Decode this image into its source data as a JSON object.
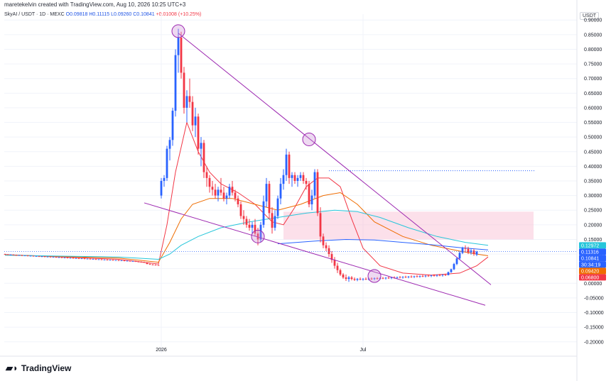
{
  "header": {
    "text": "maretekelvin created with TradingView.com, Aug 10, 2026 10:25 UTC+3"
  },
  "legend": {
    "symbol": "SkyAI / USDT · 1D · MEXC",
    "open": "O0.09818",
    "high": "H0.11115",
    "low": "L0.09260",
    "close": "C0.10841",
    "change": "+0.01008 (+10.25%)"
  },
  "quote_currency": "USDT",
  "footer": {
    "brand": "TradingView"
  },
  "colors": {
    "up": "#2962ff",
    "down": "#f23645",
    "channel": "#9c27b0",
    "ma_fast": "#f23645",
    "ma_mid": "#ef6c00",
    "ma_cyan": "#26c6da",
    "ma_blue": "#2962ff",
    "zone": "#f8bbd0",
    "resistance": "#2962ff"
  },
  "price_tags": [
    {
      "label": "0.12972",
      "value": 0.12972,
      "color": "#26c6da"
    },
    {
      "label": "0.11316",
      "value": 0.11316,
      "color": "#2962ff"
    },
    {
      "label": "0.10841",
      "value": 0.10841,
      "color": "#2962ff"
    },
    {
      "label": "30:34:19",
      "value": 0.0975,
      "color": "#2962ff"
    },
    {
      "label": "0.09420",
      "value": 0.0942,
      "color": "#ef6c00"
    },
    {
      "label": "0.06800",
      "value": 0.068,
      "color": "#f23645"
    }
  ],
  "chart_data": {
    "type": "candlestick",
    "ylim": [
      -0.22,
      0.92
    ],
    "y_ticks": [
      0.9,
      0.85,
      0.8,
      0.75,
      0.7,
      0.65,
      0.6,
      0.55,
      0.5,
      0.45,
      0.4,
      0.35,
      0.3,
      0.25,
      0.2,
      0.15,
      0.1,
      0.05,
      0.0,
      -0.05,
      -0.1,
      -0.15,
      -0.2
    ],
    "y_tick_labels": [
      "0.90000",
      "0.85000",
      "0.80000",
      "0.75000",
      "0.70000",
      "0.65000",
      "0.60000",
      "0.55000",
      "0.50000",
      "0.45000",
      "0.40000",
      "0.35000",
      "0.30000",
      "0.25000",
      "0.20000",
      "0.15000",
      "0.10000",
      "0.05000",
      "0.00000",
      "-0.05000",
      "-0.10000",
      "-0.15000",
      "-0.20000"
    ],
    "x_labels": [
      {
        "label": "2026",
        "bar": 55
      },
      {
        "label": "Jul",
        "bar": 126
      }
    ],
    "bar_count": 172,
    "candles": [
      [
        0.1,
        0.101,
        0.097,
        0.099
      ],
      [
        0.099,
        0.1,
        0.096,
        0.097
      ],
      [
        0.097,
        0.099,
        0.096,
        0.098
      ],
      [
        0.098,
        0.099,
        0.095,
        0.096
      ],
      [
        0.096,
        0.098,
        0.094,
        0.095
      ],
      [
        0.095,
        0.097,
        0.094,
        0.096
      ],
      [
        0.096,
        0.097,
        0.093,
        0.094
      ],
      [
        0.094,
        0.096,
        0.093,
        0.095
      ],
      [
        0.095,
        0.096,
        0.092,
        0.093
      ],
      [
        0.093,
        0.095,
        0.092,
        0.094
      ],
      [
        0.094,
        0.095,
        0.091,
        0.092
      ],
      [
        0.092,
        0.094,
        0.091,
        0.093
      ],
      [
        0.093,
        0.094,
        0.09,
        0.091
      ],
      [
        0.091,
        0.093,
        0.09,
        0.092
      ],
      [
        0.092,
        0.093,
        0.089,
        0.09
      ],
      [
        0.09,
        0.092,
        0.089,
        0.091
      ],
      [
        0.091,
        0.092,
        0.088,
        0.089
      ],
      [
        0.089,
        0.091,
        0.088,
        0.09
      ],
      [
        0.09,
        0.091,
        0.087,
        0.088
      ],
      [
        0.088,
        0.09,
        0.087,
        0.089
      ],
      [
        0.089,
        0.09,
        0.086,
        0.087
      ],
      [
        0.087,
        0.089,
        0.086,
        0.088
      ],
      [
        0.088,
        0.089,
        0.085,
        0.086
      ],
      [
        0.086,
        0.088,
        0.085,
        0.087
      ],
      [
        0.087,
        0.088,
        0.084,
        0.085
      ],
      [
        0.085,
        0.087,
        0.084,
        0.086
      ],
      [
        0.086,
        0.087,
        0.083,
        0.084
      ],
      [
        0.084,
        0.086,
        0.083,
        0.085
      ],
      [
        0.085,
        0.086,
        0.082,
        0.083
      ],
      [
        0.083,
        0.085,
        0.082,
        0.084
      ],
      [
        0.084,
        0.085,
        0.081,
        0.082
      ],
      [
        0.082,
        0.084,
        0.081,
        0.083
      ],
      [
        0.083,
        0.084,
        0.08,
        0.081
      ],
      [
        0.081,
        0.083,
        0.08,
        0.082
      ],
      [
        0.082,
        0.083,
        0.079,
        0.08
      ],
      [
        0.08,
        0.082,
        0.079,
        0.081
      ],
      [
        0.081,
        0.082,
        0.078,
        0.079
      ],
      [
        0.079,
        0.081,
        0.078,
        0.08
      ],
      [
        0.08,
        0.081,
        0.077,
        0.078
      ],
      [
        0.078,
        0.08,
        0.077,
        0.079
      ],
      [
        0.079,
        0.08,
        0.076,
        0.077
      ],
      [
        0.077,
        0.079,
        0.076,
        0.078
      ],
      [
        0.078,
        0.079,
        0.075,
        0.076
      ],
      [
        0.076,
        0.078,
        0.075,
        0.077
      ],
      [
        0.077,
        0.078,
        0.074,
        0.075
      ],
      [
        0.075,
        0.077,
        0.074,
        0.076
      ],
      [
        0.076,
        0.077,
        0.073,
        0.074
      ],
      [
        0.074,
        0.076,
        0.072,
        0.073
      ],
      [
        0.073,
        0.075,
        0.071,
        0.072
      ],
      [
        0.072,
        0.074,
        0.07,
        0.071
      ],
      [
        0.071,
        0.072,
        0.065,
        0.066
      ],
      [
        0.066,
        0.068,
        0.063,
        0.064
      ],
      [
        0.064,
        0.066,
        0.062,
        0.063
      ],
      [
        0.063,
        0.065,
        0.061,
        0.062
      ],
      [
        0.062,
        0.064,
        0.06,
        0.061
      ],
      [
        0.3,
        0.36,
        0.29,
        0.35
      ],
      [
        0.35,
        0.37,
        0.33,
        0.36
      ],
      [
        0.36,
        0.47,
        0.35,
        0.46
      ],
      [
        0.46,
        0.5,
        0.42,
        0.49
      ],
      [
        0.49,
        0.6,
        0.47,
        0.59
      ],
      [
        0.59,
        0.8,
        0.57,
        0.78
      ],
      [
        0.78,
        0.87,
        0.72,
        0.84
      ],
      [
        0.84,
        0.86,
        0.7,
        0.72
      ],
      [
        0.72,
        0.74,
        0.58,
        0.6
      ],
      [
        0.6,
        0.66,
        0.55,
        0.64
      ],
      [
        0.64,
        0.7,
        0.6,
        0.62
      ],
      [
        0.62,
        0.64,
        0.52,
        0.54
      ],
      [
        0.54,
        0.6,
        0.5,
        0.57
      ],
      [
        0.57,
        0.58,
        0.44,
        0.46
      ],
      [
        0.46,
        0.5,
        0.4,
        0.48
      ],
      [
        0.48,
        0.49,
        0.36,
        0.38
      ],
      [
        0.38,
        0.4,
        0.33,
        0.36
      ],
      [
        0.36,
        0.37,
        0.31,
        0.33
      ],
      [
        0.33,
        0.35,
        0.3,
        0.32
      ],
      [
        0.32,
        0.34,
        0.29,
        0.3
      ],
      [
        0.3,
        0.33,
        0.28,
        0.32
      ],
      [
        0.32,
        0.36,
        0.3,
        0.31
      ],
      [
        0.31,
        0.33,
        0.28,
        0.29
      ],
      [
        0.29,
        0.31,
        0.27,
        0.3
      ],
      [
        0.3,
        0.34,
        0.29,
        0.33
      ],
      [
        0.33,
        0.35,
        0.3,
        0.31
      ],
      [
        0.31,
        0.32,
        0.28,
        0.29
      ],
      [
        0.29,
        0.3,
        0.26,
        0.27
      ],
      [
        0.27,
        0.28,
        0.22,
        0.23
      ],
      [
        0.23,
        0.25,
        0.2,
        0.22
      ],
      [
        0.22,
        0.23,
        0.19,
        0.2
      ],
      [
        0.2,
        0.22,
        0.18,
        0.19
      ],
      [
        0.19,
        0.21,
        0.17,
        0.2
      ],
      [
        0.2,
        0.22,
        0.16,
        0.17
      ],
      [
        0.17,
        0.19,
        0.13,
        0.15
      ],
      [
        0.15,
        0.21,
        0.14,
        0.2
      ],
      [
        0.2,
        0.3,
        0.19,
        0.28
      ],
      [
        0.28,
        0.36,
        0.26,
        0.34
      ],
      [
        0.34,
        0.35,
        0.22,
        0.24
      ],
      [
        0.24,
        0.26,
        0.17,
        0.19
      ],
      [
        0.19,
        0.25,
        0.18,
        0.23
      ],
      [
        0.23,
        0.3,
        0.22,
        0.29
      ],
      [
        0.29,
        0.36,
        0.27,
        0.34
      ],
      [
        0.34,
        0.39,
        0.32,
        0.37
      ],
      [
        0.37,
        0.46,
        0.35,
        0.44
      ],
      [
        0.44,
        0.45,
        0.34,
        0.36
      ],
      [
        0.36,
        0.38,
        0.33,
        0.37
      ],
      [
        0.37,
        0.38,
        0.34,
        0.35
      ],
      [
        0.35,
        0.37,
        0.33,
        0.36
      ],
      [
        0.36,
        0.38,
        0.35,
        0.37
      ],
      [
        0.37,
        0.38,
        0.34,
        0.35
      ],
      [
        0.35,
        0.36,
        0.32,
        0.34
      ],
      [
        0.34,
        0.35,
        0.26,
        0.27
      ],
      [
        0.27,
        0.32,
        0.25,
        0.3
      ],
      [
        0.3,
        0.39,
        0.29,
        0.38
      ],
      [
        0.38,
        0.39,
        0.23,
        0.24
      ],
      [
        0.24,
        0.26,
        0.14,
        0.16
      ],
      [
        0.16,
        0.17,
        0.12,
        0.13
      ],
      [
        0.13,
        0.14,
        0.11,
        0.12
      ],
      [
        0.12,
        0.13,
        0.09,
        0.1
      ],
      [
        0.1,
        0.11,
        0.07,
        0.08
      ],
      [
        0.08,
        0.09,
        0.05,
        0.06
      ],
      [
        0.06,
        0.07,
        0.035,
        0.045
      ],
      [
        0.045,
        0.05,
        0.025,
        0.03
      ],
      [
        0.03,
        0.035,
        0.015,
        0.02
      ],
      [
        0.02,
        0.03,
        0.008,
        0.015
      ],
      [
        0.015,
        0.025,
        0.005,
        0.02
      ],
      [
        0.02,
        0.025,
        0.01,
        0.015
      ],
      [
        0.015,
        0.02,
        0.008,
        0.012
      ],
      [
        0.012,
        0.018,
        0.007,
        0.015
      ],
      [
        0.015,
        0.02,
        0.01,
        0.013
      ],
      [
        0.013,
        0.018,
        0.009,
        0.015
      ],
      [
        0.015,
        0.02,
        0.011,
        0.014
      ],
      [
        0.014,
        0.019,
        0.01,
        0.016
      ],
      [
        0.016,
        0.02,
        0.012,
        0.015
      ],
      [
        0.015,
        0.02,
        0.011,
        0.017
      ],
      [
        0.017,
        0.021,
        0.013,
        0.016
      ],
      [
        0.016,
        0.02,
        0.012,
        0.018
      ],
      [
        0.018,
        0.022,
        0.014,
        0.017
      ],
      [
        0.017,
        0.021,
        0.013,
        0.019
      ],
      [
        0.019,
        0.023,
        0.015,
        0.018
      ],
      [
        0.018,
        0.022,
        0.014,
        0.02
      ],
      [
        0.02,
        0.024,
        0.016,
        0.019
      ],
      [
        0.019,
        0.023,
        0.015,
        0.021
      ],
      [
        0.021,
        0.025,
        0.017,
        0.02
      ],
      [
        0.02,
        0.024,
        0.016,
        0.022
      ],
      [
        0.022,
        0.026,
        0.018,
        0.021
      ],
      [
        0.021,
        0.025,
        0.017,
        0.023
      ],
      [
        0.023,
        0.027,
        0.019,
        0.022
      ],
      [
        0.022,
        0.026,
        0.018,
        0.024
      ],
      [
        0.024,
        0.028,
        0.02,
        0.023
      ],
      [
        0.023,
        0.027,
        0.019,
        0.025
      ],
      [
        0.025,
        0.029,
        0.021,
        0.024
      ],
      [
        0.024,
        0.028,
        0.02,
        0.026
      ],
      [
        0.026,
        0.03,
        0.022,
        0.025
      ],
      [
        0.025,
        0.029,
        0.021,
        0.027
      ],
      [
        0.027,
        0.031,
        0.023,
        0.026
      ],
      [
        0.026,
        0.03,
        0.022,
        0.028
      ],
      [
        0.028,
        0.032,
        0.024,
        0.027
      ],
      [
        0.027,
        0.031,
        0.023,
        0.029
      ],
      [
        0.029,
        0.033,
        0.025,
        0.028
      ],
      [
        0.028,
        0.04,
        0.027,
        0.038
      ],
      [
        0.038,
        0.05,
        0.036,
        0.048
      ],
      [
        0.048,
        0.07,
        0.045,
        0.066
      ],
      [
        0.066,
        0.09,
        0.062,
        0.085
      ],
      [
        0.085,
        0.11,
        0.08,
        0.104
      ],
      [
        0.104,
        0.125,
        0.1,
        0.12
      ],
      [
        0.12,
        0.13,
        0.105,
        0.118
      ],
      [
        0.118,
        0.125,
        0.1,
        0.106
      ],
      [
        0.106,
        0.12,
        0.098,
        0.112
      ],
      [
        0.112,
        0.118,
        0.094,
        0.1
      ],
      [
        0.098,
        0.111,
        0.093,
        0.108
      ]
    ],
    "moving_averages": [
      {
        "name": "",
        "color": "#f23645",
        "points": [
          [
            0,
            0.098
          ],
          [
            40,
            0.082
          ],
          [
            54,
            0.066
          ],
          [
            57,
            0.2
          ],
          [
            60,
            0.38
          ],
          [
            64,
            0.55
          ],
          [
            68,
            0.45
          ],
          [
            72,
            0.38
          ],
          [
            76,
            0.34
          ],
          [
            82,
            0.31
          ],
          [
            88,
            0.27
          ],
          [
            94,
            0.21
          ],
          [
            98,
            0.2
          ],
          [
            102,
            0.26
          ],
          [
            106,
            0.33
          ],
          [
            110,
            0.36
          ],
          [
            114,
            0.36
          ],
          [
            118,
            0.33
          ],
          [
            122,
            0.22
          ],
          [
            126,
            0.12
          ],
          [
            132,
            0.06
          ],
          [
            140,
            0.035
          ],
          [
            150,
            0.028
          ],
          [
            160,
            0.035
          ],
          [
            166,
            0.06
          ],
          [
            170,
            0.09
          ]
        ]
      },
      {
        "name": "",
        "color": "#ef6c00",
        "points": [
          [
            0,
            0.097
          ],
          [
            40,
            0.086
          ],
          [
            54,
            0.072
          ],
          [
            58,
            0.14
          ],
          [
            62,
            0.22
          ],
          [
            66,
            0.27
          ],
          [
            72,
            0.29
          ],
          [
            80,
            0.29
          ],
          [
            88,
            0.27
          ],
          [
            96,
            0.25
          ],
          [
            104,
            0.27
          ],
          [
            112,
            0.3
          ],
          [
            118,
            0.31
          ],
          [
            124,
            0.27
          ],
          [
            130,
            0.21
          ],
          [
            140,
            0.16
          ],
          [
            150,
            0.13
          ],
          [
            160,
            0.11
          ],
          [
            166,
            0.1
          ],
          [
            170,
            0.094
          ]
        ]
      },
      {
        "name": "",
        "color": "#26c6da",
        "points": [
          [
            0,
            0.096
          ],
          [
            40,
            0.09
          ],
          [
            54,
            0.082
          ],
          [
            58,
            0.1
          ],
          [
            62,
            0.13
          ],
          [
            68,
            0.16
          ],
          [
            76,
            0.19
          ],
          [
            86,
            0.21
          ],
          [
            96,
            0.225
          ],
          [
            106,
            0.24
          ],
          [
            116,
            0.25
          ],
          [
            124,
            0.245
          ],
          [
            132,
            0.225
          ],
          [
            142,
            0.19
          ],
          [
            152,
            0.16
          ],
          [
            162,
            0.14
          ],
          [
            170,
            0.13
          ]
        ]
      },
      {
        "name": "",
        "color": "#2962ff",
        "points": [
          [
            96,
            0.135
          ],
          [
            110,
            0.145
          ],
          [
            120,
            0.15
          ],
          [
            130,
            0.148
          ],
          [
            140,
            0.14
          ],
          [
            150,
            0.132
          ],
          [
            160,
            0.122
          ],
          [
            170,
            0.114
          ]
        ]
      }
    ],
    "trendlines": [
      {
        "color": "#9c27b0",
        "from": [
          61,
          0.855
        ],
        "to": [
          171,
          -0.005
        ]
      },
      {
        "color": "#9c27b0",
        "from": [
          49,
          0.275
        ],
        "to": [
          169,
          -0.075
        ]
      }
    ],
    "resistance_line": {
      "value": 0.385,
      "from_bar": 114,
      "to_bar": 184
    },
    "zone": {
      "top": 0.245,
      "bottom": 0.15,
      "from_bar": 98,
      "to_bar": 186
    },
    "circles": [
      {
        "bar": 61,
        "value": 0.862
      },
      {
        "bar": 107,
        "value": 0.492
      },
      {
        "bar": 89,
        "value": 0.16
      },
      {
        "bar": 130,
        "value": 0.025
      }
    ],
    "current_price": 0.10841
  }
}
